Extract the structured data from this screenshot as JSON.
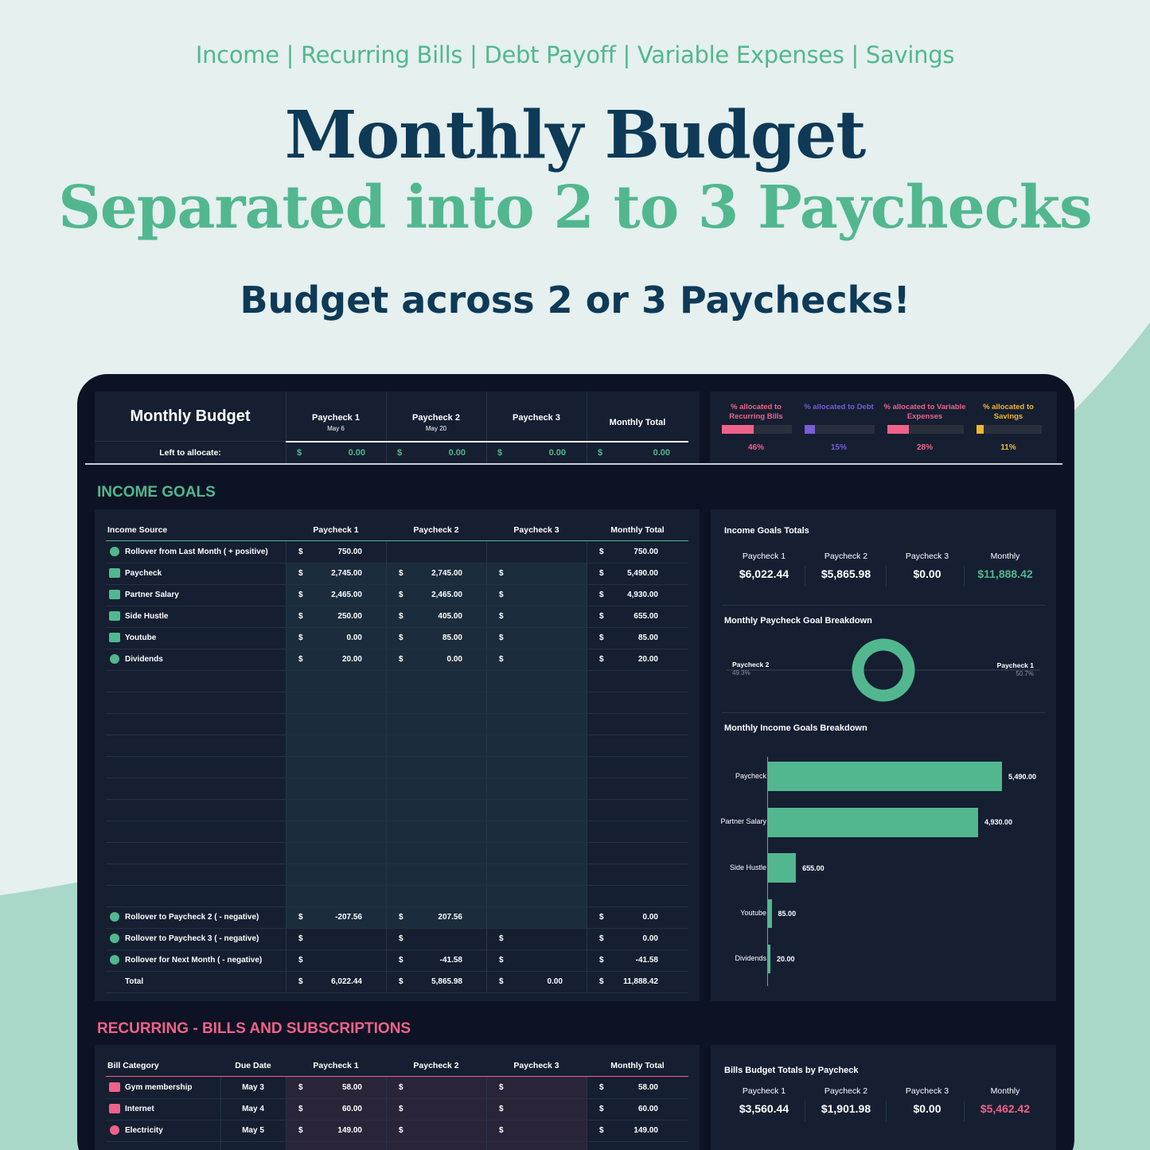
{
  "promo": {
    "categories": "Income | Recurring Bills | Debt Payoff | Variable Expenses | Savings",
    "title_line1": "Monthly Budget",
    "title_line2": "Separated into 2 to 3 Paychecks",
    "subtitle": "Budget across 2 or 3 Paychecks!"
  },
  "colors": {
    "accent_green": "#52b78f",
    "navy": "#0e3a57",
    "pink": "#f0628a",
    "purple": "#7a5cd6",
    "yellow": "#f2b630"
  },
  "header": {
    "title": "Monthly Budget",
    "columns": [
      {
        "label": "Paycheck 1",
        "date": "May 6"
      },
      {
        "label": "Paycheck 2",
        "date": "May 20"
      },
      {
        "label": "Paycheck 3",
        "date": ""
      },
      {
        "label": "Monthly Total",
        "date": ""
      }
    ],
    "left_label": "Left to allocate:",
    "currency": "$",
    "left_values": [
      "0.00",
      "0.00",
      "0.00",
      "0.00"
    ]
  },
  "allocation": [
    {
      "label": "% allocated to Recurring Bills",
      "pct_text": "46%",
      "fraction": 0.46,
      "color": "#f0628a"
    },
    {
      "label": "% allocated to Debt",
      "pct_text": "15%",
      "fraction": 0.15,
      "color": "#7a5cd6"
    },
    {
      "label": "% allocated to Variable Expenses",
      "pct_text": "28%",
      "fraction": 0.28,
      "color": "#f0628a"
    },
    {
      "label": "% allocated to Savings",
      "pct_text": "11%",
      "fraction": 0.11,
      "color": "#f2b630"
    }
  ],
  "income": {
    "section_title": "INCOME GOALS",
    "headers": [
      "Income Source",
      "Paycheck 1",
      "Paycheck 2",
      "Paycheck 3",
      "Monthly Total"
    ],
    "rows": [
      {
        "label": "Rollover from Last Month ( + positive)",
        "icon": "rollover-icon",
        "p1": "750.00",
        "p2": null,
        "p3": null,
        "total": "750.00"
      },
      {
        "label": "Paycheck",
        "icon": "cash-icon",
        "p1": "2,745.00",
        "p2": "2,745.00",
        "p3": "",
        "total": "5,490.00"
      },
      {
        "label": "Partner Salary",
        "icon": "wallet-icon",
        "p1": "2,465.00",
        "p2": "2,465.00",
        "p3": "",
        "total": "4,930.00"
      },
      {
        "label": "Side Hustle",
        "icon": "money-icon",
        "p1": "250.00",
        "p2": "405.00",
        "p3": "",
        "total": "655.00"
      },
      {
        "label": "Youtube",
        "icon": "youtube-icon",
        "p1": "0.00",
        "p2": "85.00",
        "p3": "",
        "total": "85.00"
      },
      {
        "label": "Dividends",
        "icon": "pie-icon",
        "p1": "20.00",
        "p2": "0.00",
        "p3": "",
        "total": "20.00"
      }
    ],
    "rollover_rows": [
      {
        "label": "Rollover to Paycheck 2 ( - negative)",
        "p1": "-207.56",
        "p2": "207.56",
        "p3": null,
        "total": "0.00"
      },
      {
        "label": "Rollover to Paycheck 3 ( - negative)",
        "p1": "",
        "p2": "",
        "p3": "",
        "total": "0.00"
      },
      {
        "label": "Rollover for Next Month ( - negative)",
        "p1": "",
        "p2": "-41.58",
        "p3": "",
        "total": "-41.58"
      }
    ],
    "total_row": {
      "label": "Total",
      "p1": "6,022.44",
      "p2": "5,865.98",
      "p3": "0.00",
      "total": "11,888.42"
    }
  },
  "income_totals": {
    "title": "Income Goals Totals",
    "heads": [
      "Paycheck 1",
      "Paycheck 2",
      "Paycheck 3",
      "Monthly"
    ],
    "values": [
      "$6,022.44",
      "$5,865.98",
      "$0.00",
      "$11,888.42"
    ]
  },
  "donut": {
    "title": "Monthly Paycheck Goal Breakdown",
    "left_label": "Paycheck 2",
    "left_pct": "49.3%",
    "right_label": "Paycheck 1",
    "right_pct": "50.7%"
  },
  "chart_data": {
    "type": "bar",
    "title": "Monthly Income Goals Breakdown",
    "orientation": "horizontal",
    "categories": [
      "Paycheck",
      "Partner Salary",
      "Side Hustle",
      "Youtube",
      "Dividends"
    ],
    "values": [
      5490.0,
      4930.0,
      655.0,
      85.0,
      20.0
    ],
    "value_labels": [
      "5,490.00",
      "4,930.00",
      "655.00",
      "85.00",
      "20.00"
    ],
    "xlim": [
      0,
      5490
    ],
    "color": "#52b78f"
  },
  "bills": {
    "section_title": "RECURRING - BILLS AND SUBSCRIPTIONS",
    "headers": [
      "Bill Category",
      "Due Date",
      "Paycheck 1",
      "Paycheck 2",
      "Paycheck 3",
      "Monthly Total"
    ],
    "rows": [
      {
        "label": "Gym membership",
        "icon": "gym-icon",
        "due": "May 3",
        "p1": "58.00",
        "p2": "",
        "p3": "",
        "total": "58.00"
      },
      {
        "label": "Internet",
        "icon": "wifi-icon",
        "due": "May 4",
        "p1": "60.00",
        "p2": "",
        "p3": "",
        "total": "60.00"
      },
      {
        "label": "Electricity",
        "icon": "bulb-icon",
        "due": "May 5",
        "p1": "149.00",
        "p2": "",
        "p3": "",
        "total": "149.00"
      }
    ]
  },
  "bills_totals": {
    "title": "Bills Budget Totals by Paycheck",
    "heads": [
      "Paycheck 1",
      "Paycheck 2",
      "Paycheck 3",
      "Monthly"
    ],
    "values": [
      "$3,560.44",
      "$1,901.98",
      "$0.00",
      "$5,462.42"
    ]
  }
}
